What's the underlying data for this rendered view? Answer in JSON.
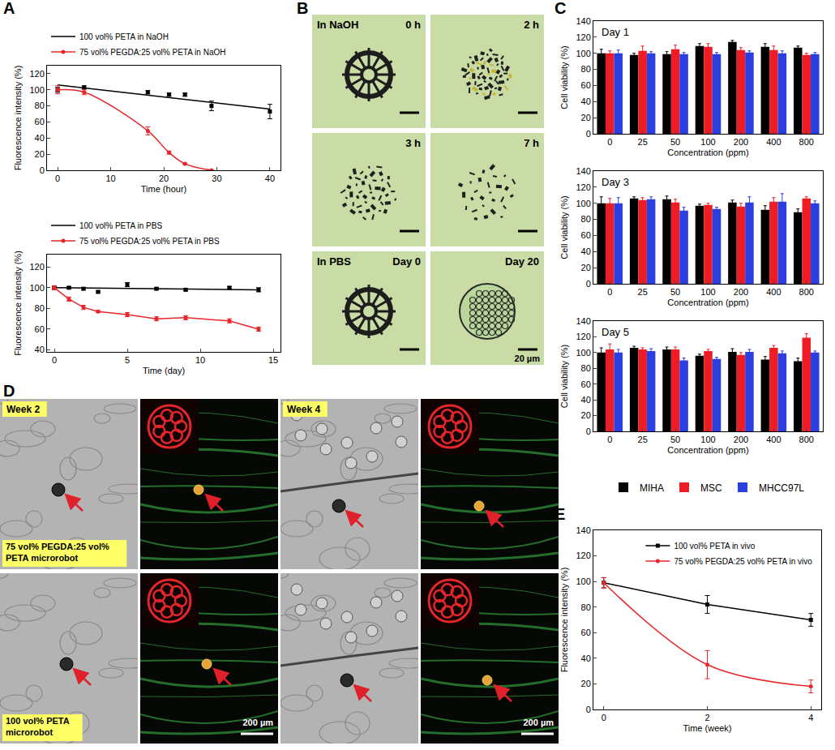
{
  "chart_data": [
    {
      "panel": "A",
      "type": "scatter",
      "x_label": "Time (hour)",
      "y_label": "Fluorescence intensity (%)",
      "xlim": [
        -2,
        42
      ],
      "xticks": [
        0,
        10,
        20,
        30,
        40
      ],
      "ylim": [
        0,
        130
      ],
      "yticks": [
        0,
        20,
        40,
        60,
        80,
        100,
        120
      ],
      "grid": false,
      "legend": "top",
      "series": [
        {
          "name": "100 vol% PETA in NaOH",
          "color": "#000000",
          "marker": "square",
          "line_style": "straight",
          "x": [
            0,
            5,
            17,
            21,
            24,
            29,
            40
          ],
          "values": [
            100,
            103,
            97,
            94,
            94,
            80,
            73
          ],
          "errors": [
            3,
            2,
            2,
            2,
            2,
            6,
            9
          ],
          "fit_x": [
            0,
            40
          ],
          "fit_values": [
            106,
            76
          ]
        },
        {
          "name": "75 vol% PEGDA:25 vol% PETA in NaOH",
          "color": "#e8262a",
          "marker": "circle",
          "line_style": "smooth",
          "x": [
            0,
            5,
            17,
            21,
            24,
            29
          ],
          "values": [
            100,
            97,
            49,
            22,
            8,
            0
          ],
          "errors": [
            5,
            3,
            5,
            2,
            1,
            0
          ]
        }
      ]
    },
    {
      "panel": "A",
      "type": "scatter",
      "x_label": "Time (day)",
      "y_label": "Fluorescence intensity (%)",
      "xlim": [
        -0.5,
        15.5
      ],
      "xticks": [
        0,
        5,
        10,
        15
      ],
      "ylim": [
        38,
        132
      ],
      "yticks": [
        40,
        60,
        80,
        100,
        120
      ],
      "grid": false,
      "legend": "top",
      "series": [
        {
          "name": "100 vol% PETA in PBS",
          "color": "#000000",
          "marker": "square",
          "line_style": "straight",
          "x": [
            0,
            1,
            2,
            3,
            5,
            7,
            9,
            12,
            14
          ],
          "values": [
            100,
            100,
            99,
            96,
            103,
            99,
            98,
            100,
            98
          ],
          "errors": [
            1,
            1,
            1,
            1,
            2,
            1,
            1,
            1,
            2
          ],
          "fit_x": [
            0,
            14
          ],
          "fit_values": [
            100,
            98
          ]
        },
        {
          "name": "75 vol% PEGDA:25 vol% PETA in PBS",
          "color": "#e8262a",
          "marker": "circle",
          "line_style": "straight",
          "x": [
            0,
            1,
            2,
            3,
            5,
            7,
            9,
            12,
            14
          ],
          "values": [
            100,
            89,
            81,
            77,
            74,
            70,
            71,
            68,
            60
          ],
          "errors": [
            2,
            2,
            2,
            1,
            2,
            2,
            2,
            2,
            2
          ]
        }
      ]
    },
    {
      "panel": "C",
      "type": "bar",
      "title": "Day 1",
      "x_label": "Concentration (ppm)",
      "y_label": "Cell viability (%)",
      "categories": [
        "0",
        "25",
        "50",
        "100",
        "200",
        "400",
        "800"
      ],
      "ylim": [
        0,
        140
      ],
      "yticks": [
        0,
        20,
        40,
        60,
        80,
        100,
        120,
        140
      ],
      "grid": false,
      "series": [
        {
          "name": "MIHA",
          "color": "#000000",
          "values": [
            100,
            98,
            99,
            109,
            114,
            108,
            107
          ],
          "errors": [
            5,
            2,
            3,
            3,
            2,
            4,
            2
          ]
        },
        {
          "name": "MSC",
          "color": "#ee1c24",
          "values": [
            100,
            103,
            105,
            108,
            104,
            104,
            98
          ],
          "errors": [
            3,
            6,
            5,
            4,
            3,
            5,
            2
          ]
        },
        {
          "name": "MHCC97L",
          "color": "#2b3ee0",
          "values": [
            100,
            100,
            99,
            99,
            101,
            100,
            99
          ],
          "errors": [
            4,
            2,
            2,
            2,
            2,
            3,
            2
          ]
        }
      ]
    },
    {
      "panel": "C",
      "type": "bar",
      "title": "Day 3",
      "x_label": "Concentration (ppm)",
      "y_label": "Cell viability (%)",
      "categories": [
        "0",
        "25",
        "50",
        "100",
        "200",
        "400",
        "800"
      ],
      "ylim": [
        0,
        140
      ],
      "yticks": [
        0,
        20,
        40,
        60,
        80,
        100,
        120,
        140
      ],
      "grid": false,
      "series": [
        {
          "name": "MIHA",
          "color": "#000000",
          "values": [
            100,
            106,
            105,
            97,
            101,
            92,
            89
          ],
          "errors": [
            8,
            2,
            4,
            2,
            3,
            5,
            4
          ]
        },
        {
          "name": "MSC",
          "color": "#ee1c24",
          "values": [
            100,
            104,
            101,
            98,
            96,
            102,
            106
          ],
          "errors": [
            6,
            3,
            4,
            2,
            4,
            5,
            2
          ]
        },
        {
          "name": "MHCC97L",
          "color": "#2b3ee0",
          "values": [
            100,
            105,
            91,
            93,
            101,
            102,
            100
          ],
          "errors": [
            7,
            3,
            4,
            2,
            7,
            10,
            3
          ]
        }
      ]
    },
    {
      "panel": "C",
      "type": "bar",
      "title": "Day 5",
      "x_label": "Concentration (ppm)",
      "y_label": "Cell viability (%)",
      "categories": [
        "0",
        "25",
        "50",
        "100",
        "200",
        "400",
        "800"
      ],
      "ylim": [
        0,
        140
      ],
      "yticks": [
        0,
        20,
        40,
        60,
        80,
        100,
        120,
        140
      ],
      "grid": false,
      "legend": "bottom",
      "series": [
        {
          "name": "MIHA",
          "color": "#000000",
          "values": [
            100,
            106,
            104,
            96,
            101,
            91,
            89
          ],
          "errors": [
            6,
            2,
            3,
            2,
            4,
            4,
            4
          ]
        },
        {
          "name": "MSC",
          "color": "#ee1c24",
          "values": [
            104,
            104,
            104,
            102,
            97,
            106,
            119
          ],
          "errors": [
            7,
            2,
            3,
            2,
            3,
            3,
            5
          ]
        },
        {
          "name": "MHCC97L",
          "color": "#2b3ee0",
          "values": [
            100,
            102,
            90,
            92,
            101,
            99,
            100
          ],
          "errors": [
            4,
            3,
            3,
            2,
            3,
            3,
            2
          ]
        }
      ]
    },
    {
      "panel": "E",
      "type": "scatter",
      "x_label": "Time (week)",
      "y_label": "Fluorescence intensity (%)",
      "xlim": [
        -0.2,
        4.2
      ],
      "xticks": [
        0,
        2,
        4
      ],
      "ylim": [
        0,
        140
      ],
      "yticks": [
        0,
        20,
        40,
        60,
        80,
        100,
        120,
        140
      ],
      "grid": false,
      "legend": "upper right",
      "series": [
        {
          "name": "100 vol% PETA in vivo",
          "color": "#000000",
          "marker": "square",
          "line_style": "straight",
          "x": [
            0,
            2,
            4
          ],
          "values": [
            99,
            82,
            70
          ],
          "errors": [
            4,
            7,
            5
          ]
        },
        {
          "name": "75 vol% PEGDA:25 vol% PETA in vivo",
          "color": "#e8262a",
          "marker": "circle",
          "line_style": "smooth",
          "x": [
            0,
            2,
            4
          ],
          "values": [
            99,
            35,
            18
          ],
          "errors": [
            4,
            11,
            5
          ]
        }
      ]
    }
  ],
  "panel_B": {
    "panel": "B",
    "tiles": [
      {
        "condition": "In NaOH",
        "time": "0 h"
      },
      {
        "time": "2 h"
      },
      {
        "time": "3 h"
      },
      {
        "time": "7 h"
      },
      {
        "condition": "In PBS",
        "time": "Day 0"
      },
      {
        "time": "Day 20",
        "scale_bar": "20 µm"
      }
    ]
  },
  "panel_D": {
    "panel": "D",
    "tiles": [
      {
        "label": "Week 2",
        "caption": "75 vol% PEGDA:25 vol% PETA microrobot"
      },
      {},
      {
        "label": "Week 4"
      },
      {},
      {
        "caption": "100 vol% PETA microrobot"
      },
      {
        "scale_bar": "200 µm"
      },
      {},
      {
        "scale_bar": "200 µm"
      }
    ]
  }
}
